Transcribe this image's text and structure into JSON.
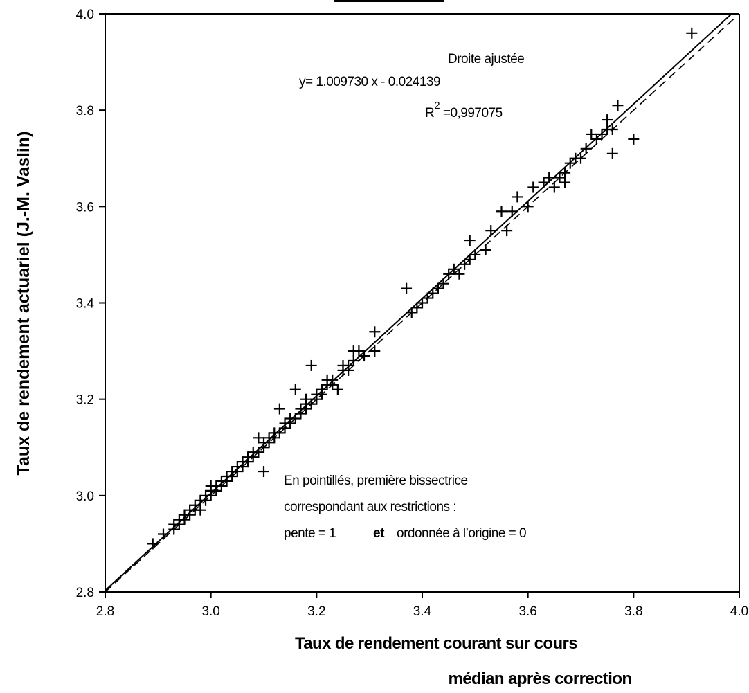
{
  "chart_data": {
    "type": "scatter",
    "xlabel_lines": [
      "Taux de rendement courant sur cours",
      "médian après correction"
    ],
    "ylabel": "Taux de rendement actuariel (J.-M. Vaslin)",
    "xlim": [
      2.8,
      4.0
    ],
    "ylim": [
      2.8,
      4.0
    ],
    "x_ticks": [
      "2.8",
      "3.0",
      "3.2",
      "3.4",
      "3.6",
      "3.8",
      "4.0"
    ],
    "y_ticks": [
      "2.8",
      "3.0",
      "3.2",
      "3.4",
      "3.6",
      "3.8",
      "4.0"
    ],
    "grid": false,
    "marker": "plus",
    "fit": {
      "title": "Droite ajustée",
      "equation": "y= 1.009730 x - 0.024139",
      "r2_label": "R",
      "r2_sup": "2",
      "r2_value": " =0,997075",
      "slope": 1.00973,
      "intercept": -0.024139,
      "style": "solid"
    },
    "bisector": {
      "style": "dashed",
      "slope": 1,
      "intercept": 0
    },
    "note": {
      "line1": "En pointillés, première bissectrice",
      "line2": "correspondant aux restrictions :",
      "line3_a": "pente = 1",
      "line3_b": "et",
      "line3_c": "ordonnée à l’origine = 0"
    },
    "series": [
      {
        "x": [
          2.89,
          2.91,
          2.93,
          2.93,
          2.94,
          2.94,
          2.95,
          2.95,
          2.96,
          2.96,
          2.97,
          2.97,
          2.98,
          2.98,
          2.99,
          2.99,
          3.0,
          3.0,
          3.0,
          3.01,
          3.01,
          3.02,
          3.02,
          3.03,
          3.03,
          3.04,
          3.04,
          3.05,
          3.05,
          3.06,
          3.06,
          3.07,
          3.07,
          3.08,
          3.08,
          3.09,
          3.09,
          3.1,
          3.1,
          3.1,
          3.11,
          3.11,
          3.12,
          3.12,
          3.13,
          3.13,
          3.14,
          3.14,
          3.15,
          3.15,
          3.16,
          3.16,
          3.17,
          3.17,
          3.18,
          3.18,
          3.18,
          3.19,
          3.19,
          3.2,
          3.2,
          3.21,
          3.21,
          3.22,
          3.22,
          3.23,
          3.23,
          3.24,
          3.25,
          3.25,
          3.26,
          3.26,
          3.27,
          3.27,
          3.28,
          3.29,
          3.31,
          3.31,
          3.37,
          3.38,
          3.39,
          3.4,
          3.41,
          3.42,
          3.43,
          3.44,
          3.45,
          3.46,
          3.47,
          3.48,
          3.49,
          3.49,
          3.5,
          3.52,
          3.53,
          3.55,
          3.56,
          3.57,
          3.58,
          3.6,
          3.61,
          3.63,
          3.64,
          3.65,
          3.66,
          3.67,
          3.67,
          3.68,
          3.69,
          3.7,
          3.71,
          3.72,
          3.73,
          3.74,
          3.75,
          3.75,
          3.76,
          3.76,
          3.77,
          3.8,
          3.91
        ],
        "y": [
          2.9,
          2.92,
          2.93,
          2.94,
          2.94,
          2.95,
          2.95,
          2.96,
          2.96,
          2.97,
          2.97,
          2.98,
          2.97,
          2.99,
          2.99,
          3.0,
          3.0,
          3.01,
          3.02,
          3.01,
          3.02,
          3.02,
          3.03,
          3.03,
          3.04,
          3.04,
          3.05,
          3.05,
          3.06,
          3.06,
          3.07,
          3.07,
          3.08,
          3.08,
          3.09,
          3.09,
          3.12,
          3.1,
          3.11,
          3.05,
          3.11,
          3.12,
          3.12,
          3.13,
          3.13,
          3.18,
          3.14,
          3.15,
          3.15,
          3.16,
          3.16,
          3.22,
          3.17,
          3.18,
          3.18,
          3.19,
          3.2,
          3.19,
          3.27,
          3.2,
          3.21,
          3.21,
          3.22,
          3.24,
          3.23,
          3.23,
          3.24,
          3.22,
          3.26,
          3.27,
          3.26,
          3.27,
          3.3,
          3.28,
          3.3,
          3.29,
          3.34,
          3.3,
          3.43,
          3.38,
          3.39,
          3.4,
          3.41,
          3.42,
          3.43,
          3.44,
          3.46,
          3.47,
          3.46,
          3.48,
          3.49,
          3.53,
          3.5,
          3.51,
          3.55,
          3.59,
          3.55,
          3.59,
          3.62,
          3.6,
          3.64,
          3.65,
          3.66,
          3.64,
          3.66,
          3.67,
          3.65,
          3.69,
          3.7,
          3.7,
          3.72,
          3.75,
          3.74,
          3.75,
          3.76,
          3.78,
          3.71,
          3.76,
          3.81,
          3.74,
          3.96
        ]
      }
    ]
  }
}
